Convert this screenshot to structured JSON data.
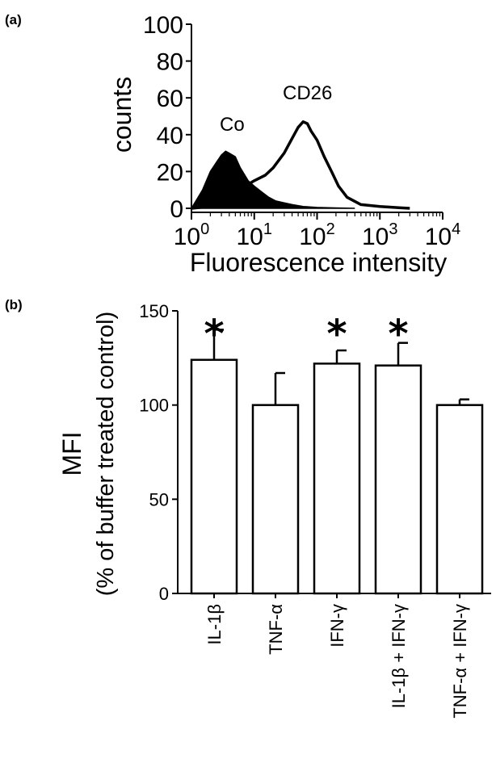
{
  "panel_a": {
    "label": "(a)",
    "chart_data": {
      "type": "histogram",
      "xlabel": "Fluorescence intensity",
      "ylabel": "counts",
      "xscale": "log",
      "xlim": [
        1,
        10000
      ],
      "ylim": [
        0,
        100
      ],
      "yticks": [
        "0",
        "20",
        "40",
        "60",
        "80",
        "100"
      ],
      "xticks": [
        {
          "base": "10",
          "exp": "0"
        },
        {
          "base": "10",
          "exp": "1"
        },
        {
          "base": "10",
          "exp": "2"
        },
        {
          "base": "10",
          "exp": "3"
        },
        {
          "base": "10",
          "exp": "4"
        }
      ],
      "series": [
        {
          "name": "Co",
          "style": "filled",
          "x": [
            1,
            1.5,
            2,
            2.5,
            3,
            3.5,
            4,
            5,
            6,
            8,
            10,
            13,
            17,
            22,
            30,
            40,
            60,
            100,
            200,
            400
          ],
          "y": [
            0,
            10,
            20,
            25,
            29,
            31,
            30,
            28,
            22,
            15,
            12,
            9,
            6,
            4,
            3,
            2,
            1,
            0.5,
            0.2,
            0
          ]
        },
        {
          "name": "CD26",
          "style": "outline",
          "x": [
            1,
            2,
            3,
            5,
            8,
            10,
            15,
            20,
            30,
            40,
            50,
            60,
            70,
            80,
            100,
            130,
            170,
            220,
            300,
            500,
            1000,
            2000,
            3000
          ],
          "y": [
            0,
            1,
            3,
            8,
            13,
            15,
            18,
            22,
            30,
            38,
            44,
            47,
            46,
            42,
            37,
            28,
            20,
            12,
            6,
            2,
            1,
            0.3,
            0
          ]
        }
      ],
      "annotations": [
        "Co",
        "CD26"
      ]
    }
  },
  "panel_b": {
    "label": "(b)",
    "chart_data": {
      "type": "bar",
      "ylabel_line1": "MFI",
      "ylabel_line2": "(% of buffer treated control)",
      "ylim": [
        0,
        150
      ],
      "yticks": [
        "0",
        "50",
        "100",
        "150"
      ],
      "categories": [
        "IL-1β",
        "TNF-α",
        "IFN-γ",
        "IL-1β + IFN-γ",
        "TNF-α + IFN-γ"
      ],
      "values": [
        124,
        100,
        122,
        121,
        100
      ],
      "errors": [
        16,
        17,
        7,
        12,
        3
      ],
      "significant": [
        true,
        false,
        true,
        true,
        false
      ],
      "significance_marker": "*"
    }
  }
}
